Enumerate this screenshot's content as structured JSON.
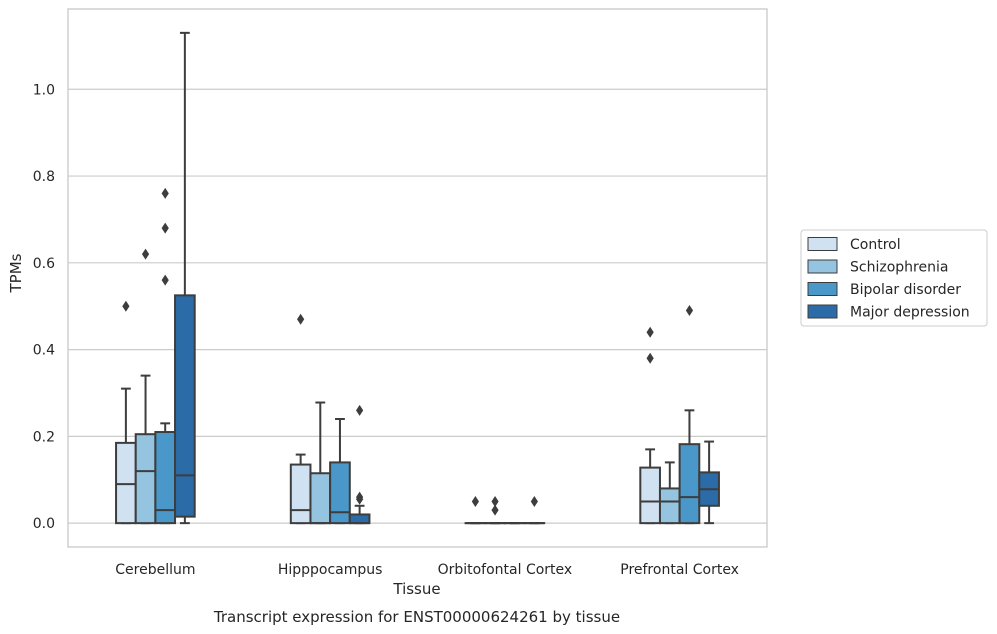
{
  "chart_data": {
    "type": "boxplot",
    "title": "",
    "caption": "Transcript expression for ENST00000624261 by tissue",
    "xlabel": "Tissue",
    "ylabel": "TPMs",
    "ylim": [
      -0.055,
      1.185
    ],
    "yticks": [
      0.0,
      0.2,
      0.4,
      0.6,
      0.8,
      1.0
    ],
    "yticklabels": [
      "0.0",
      "0.2",
      "0.4",
      "0.6",
      "0.8",
      "1.0"
    ],
    "grid": true,
    "legend_placement": "right, outside plot area",
    "categories": [
      "Cerebellum",
      "Hipppocampus",
      "Orbitofontal Cortex",
      "Prefrontal Cortex"
    ],
    "series": [
      {
        "name": "Control",
        "color": "#d0e1f2",
        "boxes": [
          {
            "whislo": 0.0,
            "q1": 0.0,
            "med": 0.09,
            "q3": 0.185,
            "whishi": 0.31,
            "fliers": [
              0.5
            ]
          },
          {
            "whislo": 0.0,
            "q1": 0.0,
            "med": 0.03,
            "q3": 0.135,
            "whishi": 0.158,
            "fliers": [
              0.47
            ]
          },
          {
            "whislo": 0.0,
            "q1": 0.0,
            "med": 0.0,
            "q3": 0.0,
            "whishi": 0.0,
            "fliers": [
              0.05
            ]
          },
          {
            "whislo": 0.0,
            "q1": 0.0,
            "med": 0.05,
            "q3": 0.128,
            "whishi": 0.17,
            "fliers": [
              0.38,
              0.44
            ]
          }
        ]
      },
      {
        "name": "Schizophrenia",
        "color": "#94c4df",
        "boxes": [
          {
            "whislo": 0.0,
            "q1": 0.0,
            "med": 0.12,
            "q3": 0.205,
            "whishi": 0.34,
            "fliers": [
              0.62
            ]
          },
          {
            "whislo": 0.0,
            "q1": 0.0,
            "med": 0.0,
            "q3": 0.115,
            "whishi": 0.278,
            "fliers": []
          },
          {
            "whislo": 0.0,
            "q1": 0.0,
            "med": 0.0,
            "q3": 0.0,
            "whishi": 0.0,
            "fliers": [
              0.03,
              0.05
            ]
          },
          {
            "whislo": 0.0,
            "q1": 0.0,
            "med": 0.05,
            "q3": 0.08,
            "whishi": 0.14,
            "fliers": []
          }
        ]
      },
      {
        "name": "Bipolar disorder",
        "color": "#4a98c9",
        "boxes": [
          {
            "whislo": 0.0,
            "q1": 0.0,
            "med": 0.03,
            "q3": 0.21,
            "whishi": 0.23,
            "fliers": [
              0.56,
              0.68,
              0.76
            ]
          },
          {
            "whislo": 0.0,
            "q1": 0.0,
            "med": 0.025,
            "q3": 0.14,
            "whishi": 0.24,
            "fliers": []
          },
          {
            "whislo": 0.0,
            "q1": 0.0,
            "med": 0.0,
            "q3": 0.0,
            "whishi": 0.0,
            "fliers": []
          },
          {
            "whislo": 0.0,
            "q1": 0.0,
            "med": 0.06,
            "q3": 0.182,
            "whishi": 0.26,
            "fliers": [
              0.49
            ]
          }
        ]
      },
      {
        "name": "Major depression",
        "color": "#2b6ca8",
        "boxes": [
          {
            "whislo": 0.0,
            "q1": 0.015,
            "med": 0.11,
            "q3": 0.525,
            "whishi": 1.13,
            "fliers": []
          },
          {
            "whislo": 0.0,
            "q1": 0.0,
            "med": 0.0,
            "q3": 0.02,
            "whishi": 0.04,
            "fliers": [
              0.055,
              0.06,
              0.26
            ]
          },
          {
            "whislo": 0.0,
            "q1": 0.0,
            "med": 0.0,
            "q3": 0.0,
            "whishi": 0.0,
            "fliers": [
              0.05
            ]
          },
          {
            "whislo": 0.0,
            "q1": 0.04,
            "med": 0.078,
            "q3": 0.117,
            "whishi": 0.188,
            "fliers": []
          }
        ]
      }
    ]
  }
}
